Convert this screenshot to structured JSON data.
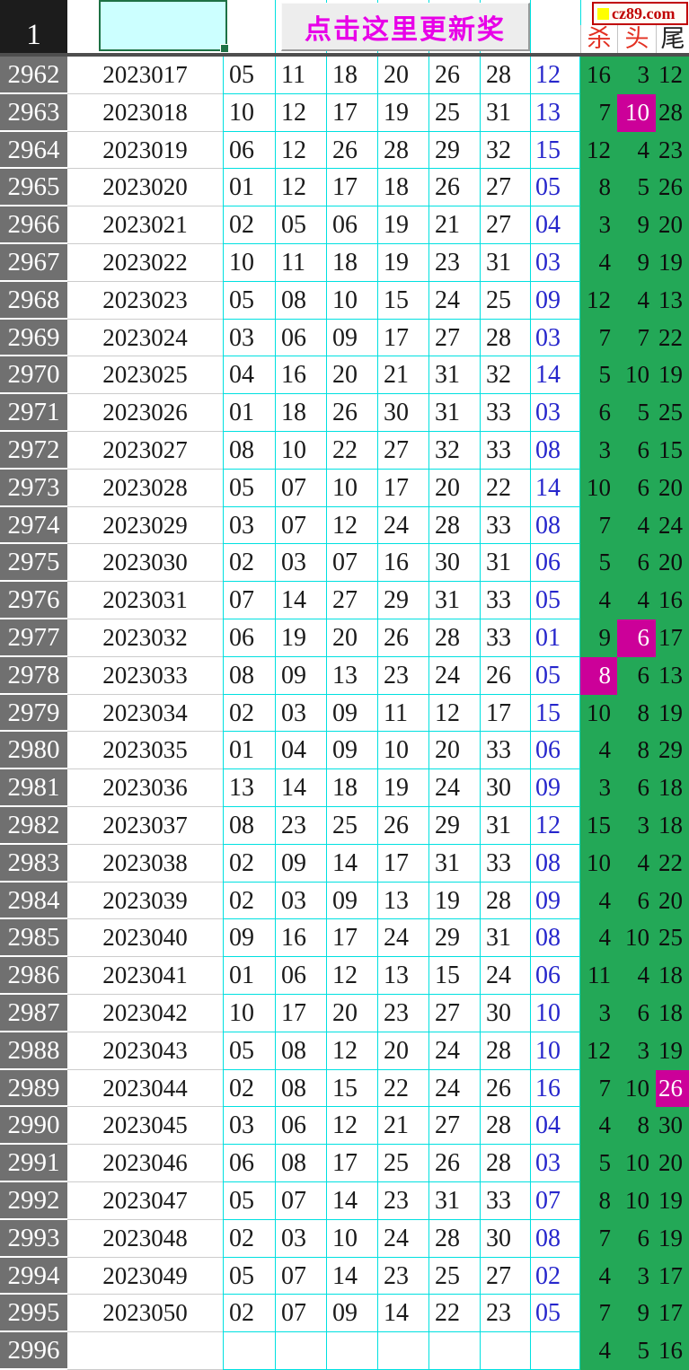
{
  "header": {
    "corner_label": "1",
    "update_button_label": "点击这里更新奖",
    "logo_text": "cz89.com",
    "columns": {
      "kill": "杀",
      "head": "头",
      "tail": "尾"
    }
  },
  "colors": {
    "green": "#23A857",
    "magenta": "#CC0099",
    "blue": "#2626CC",
    "cyan": "#00E0E0",
    "red": "#E33022",
    "gray": "#707070",
    "selfill": "#CCFFFF",
    "selborder": "#1E7145",
    "btntext": "#E800E8"
  },
  "rows": [
    {
      "idx": "2962",
      "date": "2023017",
      "nums": [
        "05",
        "11",
        "18",
        "20",
        "26",
        "28"
      ],
      "blue": "12",
      "kill": "16",
      "head": "3",
      "tail": "12",
      "hl": ""
    },
    {
      "idx": "2963",
      "date": "2023018",
      "nums": [
        "10",
        "12",
        "17",
        "19",
        "25",
        "31"
      ],
      "blue": "13",
      "kill": "7",
      "head": "10",
      "tail": "28",
      "hl": "head"
    },
    {
      "idx": "2964",
      "date": "2023019",
      "nums": [
        "06",
        "12",
        "26",
        "28",
        "29",
        "32"
      ],
      "blue": "15",
      "kill": "12",
      "head": "4",
      "tail": "23",
      "hl": ""
    },
    {
      "idx": "2965",
      "date": "2023020",
      "nums": [
        "01",
        "12",
        "17",
        "18",
        "26",
        "27"
      ],
      "blue": "05",
      "kill": "8",
      "head": "5",
      "tail": "26",
      "hl": ""
    },
    {
      "idx": "2966",
      "date": "2023021",
      "nums": [
        "02",
        "05",
        "06",
        "19",
        "21",
        "27"
      ],
      "blue": "04",
      "kill": "3",
      "head": "9",
      "tail": "20",
      "hl": ""
    },
    {
      "idx": "2967",
      "date": "2023022",
      "nums": [
        "10",
        "11",
        "18",
        "19",
        "23",
        "31"
      ],
      "blue": "03",
      "kill": "4",
      "head": "9",
      "tail": "19",
      "hl": ""
    },
    {
      "idx": "2968",
      "date": "2023023",
      "nums": [
        "05",
        "08",
        "10",
        "15",
        "24",
        "25"
      ],
      "blue": "09",
      "kill": "12",
      "head": "4",
      "tail": "13",
      "hl": ""
    },
    {
      "idx": "2969",
      "date": "2023024",
      "nums": [
        "03",
        "06",
        "09",
        "17",
        "27",
        "28"
      ],
      "blue": "03",
      "kill": "7",
      "head": "7",
      "tail": "22",
      "hl": ""
    },
    {
      "idx": "2970",
      "date": "2023025",
      "nums": [
        "04",
        "16",
        "20",
        "21",
        "31",
        "32"
      ],
      "blue": "14",
      "kill": "5",
      "head": "10",
      "tail": "19",
      "hl": ""
    },
    {
      "idx": "2971",
      "date": "2023026",
      "nums": [
        "01",
        "18",
        "26",
        "30",
        "31",
        "33"
      ],
      "blue": "03",
      "kill": "6",
      "head": "5",
      "tail": "25",
      "hl": ""
    },
    {
      "idx": "2972",
      "date": "2023027",
      "nums": [
        "08",
        "10",
        "22",
        "27",
        "32",
        "33"
      ],
      "blue": "08",
      "kill": "3",
      "head": "6",
      "tail": "15",
      "hl": ""
    },
    {
      "idx": "2973",
      "date": "2023028",
      "nums": [
        "05",
        "07",
        "10",
        "17",
        "20",
        "22"
      ],
      "blue": "14",
      "kill": "10",
      "head": "6",
      "tail": "20",
      "hl": ""
    },
    {
      "idx": "2974",
      "date": "2023029",
      "nums": [
        "03",
        "07",
        "12",
        "24",
        "28",
        "33"
      ],
      "blue": "08",
      "kill": "7",
      "head": "4",
      "tail": "24",
      "hl": ""
    },
    {
      "idx": "2975",
      "date": "2023030",
      "nums": [
        "02",
        "03",
        "07",
        "16",
        "30",
        "31"
      ],
      "blue": "06",
      "kill": "5",
      "head": "6",
      "tail": "20",
      "hl": ""
    },
    {
      "idx": "2976",
      "date": "2023031",
      "nums": [
        "07",
        "14",
        "27",
        "29",
        "31",
        "33"
      ],
      "blue": "05",
      "kill": "4",
      "head": "4",
      "tail": "16",
      "hl": ""
    },
    {
      "idx": "2977",
      "date": "2023032",
      "nums": [
        "06",
        "19",
        "20",
        "26",
        "28",
        "33"
      ],
      "blue": "01",
      "kill": "9",
      "head": "6",
      "tail": "17",
      "hl": "head"
    },
    {
      "idx": "2978",
      "date": "2023033",
      "nums": [
        "08",
        "09",
        "13",
        "23",
        "24",
        "26"
      ],
      "blue": "05",
      "kill": "8",
      "head": "6",
      "tail": "13",
      "hl": "kill"
    },
    {
      "idx": "2979",
      "date": "2023034",
      "nums": [
        "02",
        "03",
        "09",
        "11",
        "12",
        "17"
      ],
      "blue": "15",
      "kill": "10",
      "head": "8",
      "tail": "19",
      "hl": ""
    },
    {
      "idx": "2980",
      "date": "2023035",
      "nums": [
        "01",
        "04",
        "09",
        "10",
        "20",
        "33"
      ],
      "blue": "06",
      "kill": "4",
      "head": "8",
      "tail": "29",
      "hl": ""
    },
    {
      "idx": "2981",
      "date": "2023036",
      "nums": [
        "13",
        "14",
        "18",
        "19",
        "24",
        "30"
      ],
      "blue": "09",
      "kill": "3",
      "head": "6",
      "tail": "18",
      "hl": ""
    },
    {
      "idx": "2982",
      "date": "2023037",
      "nums": [
        "08",
        "23",
        "25",
        "26",
        "29",
        "31"
      ],
      "blue": "12",
      "kill": "15",
      "head": "3",
      "tail": "18",
      "hl": ""
    },
    {
      "idx": "2983",
      "date": "2023038",
      "nums": [
        "02",
        "09",
        "14",
        "17",
        "31",
        "33"
      ],
      "blue": "08",
      "kill": "10",
      "head": "4",
      "tail": "22",
      "hl": ""
    },
    {
      "idx": "2984",
      "date": "2023039",
      "nums": [
        "02",
        "03",
        "09",
        "13",
        "19",
        "28"
      ],
      "blue": "09",
      "kill": "4",
      "head": "6",
      "tail": "20",
      "hl": ""
    },
    {
      "idx": "2985",
      "date": "2023040",
      "nums": [
        "09",
        "16",
        "17",
        "24",
        "29",
        "31"
      ],
      "blue": "08",
      "kill": "4",
      "head": "10",
      "tail": "25",
      "hl": ""
    },
    {
      "idx": "2986",
      "date": "2023041",
      "nums": [
        "01",
        "06",
        "12",
        "13",
        "15",
        "24"
      ],
      "blue": "06",
      "kill": "11",
      "head": "4",
      "tail": "18",
      "hl": ""
    },
    {
      "idx": "2987",
      "date": "2023042",
      "nums": [
        "10",
        "17",
        "20",
        "23",
        "27",
        "30"
      ],
      "blue": "10",
      "kill": "3",
      "head": "6",
      "tail": "18",
      "hl": ""
    },
    {
      "idx": "2988",
      "date": "2023043",
      "nums": [
        "05",
        "08",
        "12",
        "20",
        "24",
        "28"
      ],
      "blue": "10",
      "kill": "12",
      "head": "3",
      "tail": "19",
      "hl": ""
    },
    {
      "idx": "2989",
      "date": "2023044",
      "nums": [
        "02",
        "08",
        "15",
        "22",
        "24",
        "26"
      ],
      "blue": "16",
      "kill": "7",
      "head": "10",
      "tail": "26",
      "hl": "tail"
    },
    {
      "idx": "2990",
      "date": "2023045",
      "nums": [
        "03",
        "06",
        "12",
        "21",
        "27",
        "28"
      ],
      "blue": "04",
      "kill": "4",
      "head": "8",
      "tail": "30",
      "hl": ""
    },
    {
      "idx": "2991",
      "date": "2023046",
      "nums": [
        "06",
        "08",
        "17",
        "25",
        "26",
        "28"
      ],
      "blue": "03",
      "kill": "5",
      "head": "10",
      "tail": "20",
      "hl": ""
    },
    {
      "idx": "2992",
      "date": "2023047",
      "nums": [
        "05",
        "07",
        "14",
        "23",
        "31",
        "33"
      ],
      "blue": "07",
      "kill": "8",
      "head": "10",
      "tail": "19",
      "hl": ""
    },
    {
      "idx": "2993",
      "date": "2023048",
      "nums": [
        "02",
        "03",
        "10",
        "24",
        "28",
        "30"
      ],
      "blue": "08",
      "kill": "7",
      "head": "6",
      "tail": "19",
      "hl": ""
    },
    {
      "idx": "2994",
      "date": "2023049",
      "nums": [
        "05",
        "07",
        "14",
        "23",
        "25",
        "27"
      ],
      "blue": "02",
      "kill": "4",
      "head": "3",
      "tail": "17",
      "hl": ""
    },
    {
      "idx": "2995",
      "date": "2023050",
      "nums": [
        "02",
        "07",
        "09",
        "14",
        "22",
        "23"
      ],
      "blue": "05",
      "kill": "7",
      "head": "9",
      "tail": "17",
      "hl": ""
    },
    {
      "idx": "2996",
      "date": "",
      "nums": [
        "",
        "",
        "",
        "",
        "",
        ""
      ],
      "blue": "",
      "kill": "4",
      "head": "5",
      "tail": "16",
      "hl": ""
    }
  ]
}
